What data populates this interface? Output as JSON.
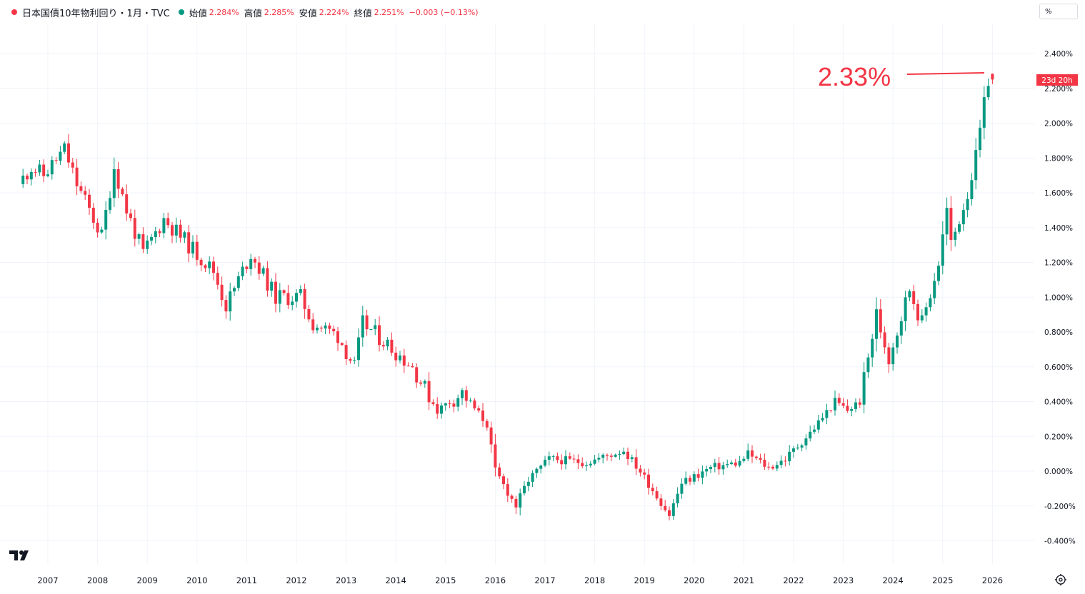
{
  "legend": {
    "symbol": "日本国債10年物利回り・1月・TVC",
    "open_label": "始値",
    "open": "2.284%",
    "high_label": "高値",
    "high": "2.285%",
    "low_label": "安値",
    "low": "2.224%",
    "close_label": "終値",
    "close": "2.251%",
    "change": "−0.003 (−0.13%)"
  },
  "unit_button": "%",
  "countdown_badge": "23d 20h",
  "annotation_text": "2.33%",
  "icons": {
    "logo": "tradingview-logo-icon",
    "settings": "settings-gear-icon"
  },
  "colors": {
    "up": "#089981",
    "down": "#F23645",
    "grid": "#F0F3FA",
    "axis_text": "#131722"
  },
  "chart_data": {
    "type": "candlestick",
    "interval": "1M",
    "title": "日本国債10年物利回り・1月・TVC",
    "y_unit": "%",
    "ylim": [
      -0.5,
      2.5
    ],
    "y_ticks": [
      "2.400%",
      "2.200%",
      "2.000%",
      "1.800%",
      "1.600%",
      "1.400%",
      "1.200%",
      "1.000%",
      "0.800%",
      "0.600%",
      "0.400%",
      "0.200%",
      "0.000%",
      "-0.200%",
      "-0.400%"
    ],
    "x_ticks": [
      "2007",
      "2008",
      "2009",
      "2010",
      "2011",
      "2012",
      "2013",
      "2014",
      "2015",
      "2016",
      "2017",
      "2018",
      "2019",
      "2020",
      "2021",
      "2022",
      "2023",
      "2024",
      "2025",
      "2026"
    ],
    "start_month": "2006-07",
    "end_month": "2026-01",
    "ohlc_note": "monthly candles, interpolated from keypoints, values in %",
    "keypoints": [
      [
        "2006-07",
        1.65
      ],
      [
        "2006-10",
        1.75
      ],
      [
        "2007-01",
        1.7
      ],
      [
        "2007-06",
        1.85
      ],
      [
        "2007-09",
        1.65
      ],
      [
        "2008-03",
        1.35
      ],
      [
        "2008-06",
        1.75
      ],
      [
        "2008-09",
        1.5
      ],
      [
        "2009-01",
        1.25
      ],
      [
        "2009-06",
        1.45
      ],
      [
        "2009-12",
        1.3
      ],
      [
        "2010-06",
        1.15
      ],
      [
        "2010-09",
        0.95
      ],
      [
        "2011-03",
        1.25
      ],
      [
        "2011-09",
        1.0
      ],
      [
        "2012-03",
        1.0
      ],
      [
        "2012-06",
        0.85
      ],
      [
        "2012-12",
        0.78
      ],
      [
        "2013-04",
        0.6
      ],
      [
        "2013-06",
        0.85
      ],
      [
        "2013-12",
        0.73
      ],
      [
        "2014-06",
        0.6
      ],
      [
        "2014-12",
        0.35
      ],
      [
        "2015-06",
        0.45
      ],
      [
        "2015-12",
        0.27
      ],
      [
        "2016-02",
        0.0
      ],
      [
        "2016-07",
        -0.2
      ],
      [
        "2016-10",
        -0.05
      ],
      [
        "2017-03",
        0.07
      ],
      [
        "2017-12",
        0.05
      ],
      [
        "2018-09",
        0.12
      ],
      [
        "2019-01",
        0.0
      ],
      [
        "2019-08",
        -0.25
      ],
      [
        "2019-11",
        -0.07
      ],
      [
        "2020-06",
        0.02
      ],
      [
        "2021-01",
        0.05
      ],
      [
        "2021-03",
        0.1
      ],
      [
        "2021-08",
        0.02
      ],
      [
        "2021-12",
        0.07
      ],
      [
        "2022-06",
        0.22
      ],
      [
        "2022-12",
        0.4
      ],
      [
        "2023-03",
        0.35
      ],
      [
        "2023-06",
        0.4
      ],
      [
        "2023-10",
        0.9
      ],
      [
        "2024-01",
        0.65
      ],
      [
        "2024-06",
        1.05
      ],
      [
        "2024-09",
        0.85
      ],
      [
        "2025-01",
        1.2
      ],
      [
        "2025-03",
        1.5
      ],
      [
        "2025-04",
        1.3
      ],
      [
        "2025-08",
        1.6
      ],
      [
        "2025-10",
        1.8
      ],
      [
        "2025-12",
        2.1
      ],
      [
        "2026-01",
        2.251
      ]
    ],
    "last_candle": {
      "open": 2.284,
      "high": 2.285,
      "low": 2.224,
      "close": 2.251
    }
  }
}
